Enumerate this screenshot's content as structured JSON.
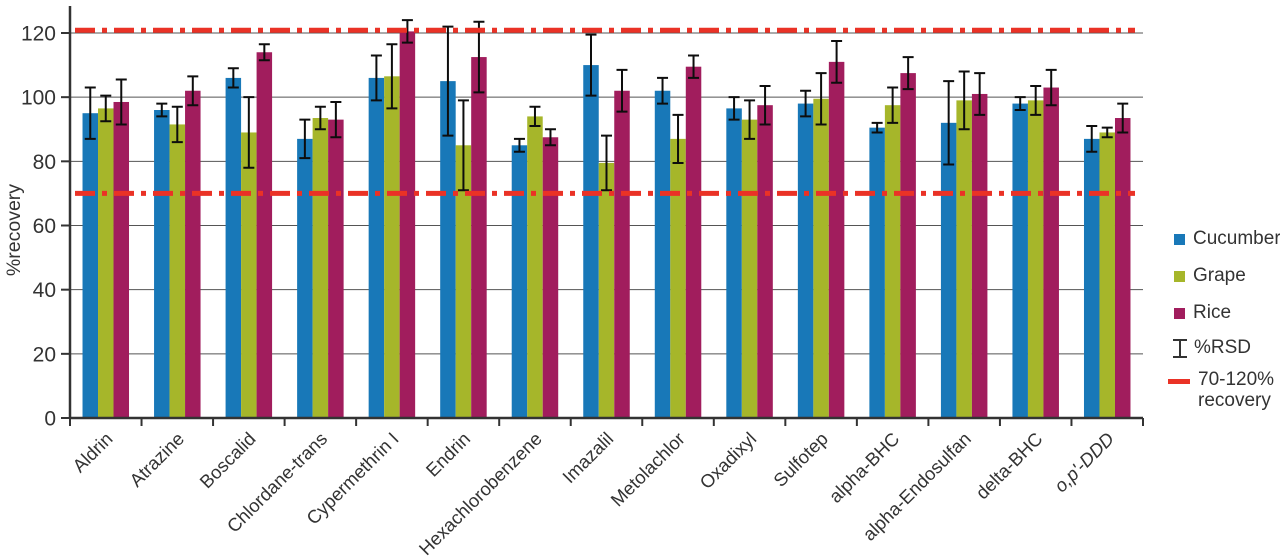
{
  "chart_data": {
    "type": "bar",
    "title": "",
    "ylabel": "%recovery",
    "ylim": [
      0,
      130
    ],
    "yticks": [
      0,
      20,
      40,
      60,
      80,
      100,
      120
    ],
    "grid": true,
    "legend_position": "right",
    "categories": [
      "Aldrin",
      "Atrazine",
      "Boscalid",
      "Chlordane-trans",
      "Cypermethrin I",
      "Endrin",
      "Hexachlorobenzene",
      "Imazalil",
      "Metolachlor",
      "Oxadixyl",
      "Sulfotep",
      "alpha-BHC",
      "alpha-Endosulfan",
      "delta-BHC",
      "o,p'-DDD"
    ],
    "italic_categories": [
      "o,p'-DDD"
    ],
    "series": [
      {
        "name": "Cucumber",
        "color": "#1878b8",
        "values": [
          95,
          96,
          106,
          87,
          106,
          105,
          85,
          110,
          102,
          96.5,
          98,
          90.5,
          92,
          98,
          87
        ],
        "rsd": [
          8,
          2,
          3,
          6,
          7,
          17,
          2,
          9.5,
          4,
          3.5,
          4,
          1.5,
          13,
          2,
          4
        ]
      },
      {
        "name": "Grape",
        "color": "#a6b62a",
        "values": [
          96.5,
          91.5,
          89,
          93.5,
          106.5,
          85,
          94,
          79.5,
          87,
          93,
          99.5,
          97.5,
          99,
          99,
          89
        ],
        "rsd": [
          4,
          5.5,
          11,
          3.5,
          10,
          14,
          3,
          8.5,
          7.5,
          6,
          8,
          5.5,
          9,
          4.5,
          1.5
        ]
      },
      {
        "name": "Rice",
        "color": "#a11d5d",
        "values": [
          98.5,
          102,
          114,
          93,
          120.5,
          112.5,
          87.5,
          102,
          109.5,
          97.5,
          111,
          107.5,
          101,
          103,
          93.5
        ],
        "rsd": [
          7,
          4.5,
          2.5,
          5.5,
          3.5,
          11,
          2.5,
          6.5,
          3.5,
          6,
          6.5,
          5,
          6.5,
          5.5,
          4.5
        ]
      }
    ],
    "error_bars": {
      "label": "%RSD",
      "color": "#0d0d0d"
    },
    "reference_lines": {
      "label": "70-120% recovery",
      "label_lines": [
        "70-120%",
        "recovery"
      ],
      "color": "#ea3226",
      "values": [
        70,
        120
      ]
    }
  }
}
